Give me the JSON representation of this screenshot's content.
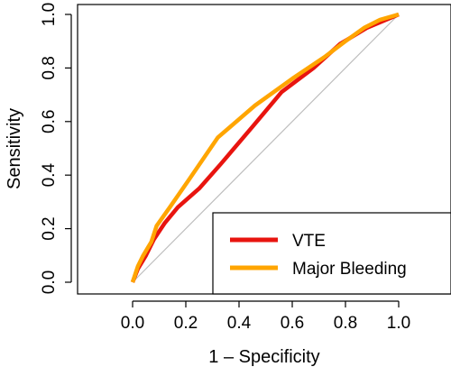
{
  "chart_data": {
    "type": "line",
    "xlabel": "1 – Specificity",
    "ylabel": "Sensitivity",
    "xlim": [
      0,
      1
    ],
    "ylim": [
      0,
      1
    ],
    "x_ticks": [
      "0.0",
      "0.2",
      "0.4",
      "0.6",
      "0.8",
      "1.0"
    ],
    "y_ticks": [
      "0.0",
      "0.2",
      "0.4",
      "0.6",
      "0.8",
      "1.0"
    ],
    "x_tick_values": [
      0,
      0.2,
      0.4,
      0.6,
      0.8,
      1.0
    ],
    "y_tick_values": [
      0,
      0.2,
      0.4,
      0.6,
      0.8,
      1.0
    ],
    "reference_line": {
      "from": [
        0,
        0
      ],
      "to": [
        1,
        1
      ],
      "color": "#bebebe"
    },
    "legend_position": "bottom-right",
    "grid": false,
    "series": [
      {
        "name": "VTE",
        "color": "#e8140f",
        "points": [
          [
            0,
            0
          ],
          [
            0.02,
            0.05
          ],
          [
            0.05,
            0.1
          ],
          [
            0.08,
            0.16
          ],
          [
            0.12,
            0.22
          ],
          [
            0.17,
            0.28
          ],
          [
            0.25,
            0.35
          ],
          [
            0.33,
            0.44
          ],
          [
            0.45,
            0.58
          ],
          [
            0.56,
            0.71
          ],
          [
            0.68,
            0.8
          ],
          [
            0.78,
            0.89
          ],
          [
            0.88,
            0.95
          ],
          [
            1.0,
            1.0
          ]
        ]
      },
      {
        "name": "Major Bleeding",
        "color": "#ffa500",
        "points": [
          [
            0,
            0
          ],
          [
            0.02,
            0.06
          ],
          [
            0.04,
            0.1
          ],
          [
            0.07,
            0.15
          ],
          [
            0.09,
            0.21
          ],
          [
            0.14,
            0.28
          ],
          [
            0.21,
            0.38
          ],
          [
            0.32,
            0.54
          ],
          [
            0.46,
            0.66
          ],
          [
            0.6,
            0.76
          ],
          [
            0.72,
            0.84
          ],
          [
            0.8,
            0.9
          ],
          [
            0.87,
            0.95
          ],
          [
            0.93,
            0.98
          ],
          [
            1.0,
            1.0
          ]
        ]
      }
    ]
  }
}
